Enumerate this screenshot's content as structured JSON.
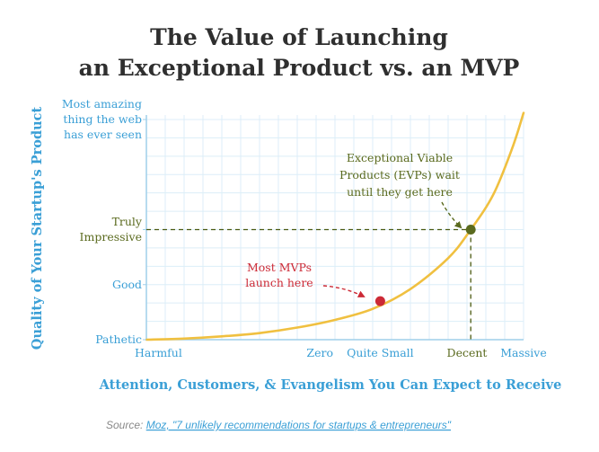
{
  "chart_data": {
    "type": "line",
    "title_lines": [
      "The Value of Launching",
      "an Exceptional Product vs. an MVP"
    ],
    "xlabel": "Attention, Customers, & Evangelism You Can Expect to Receive",
    "ylabel": "Quality of Your Startup's Product",
    "x_ticks": [
      {
        "label": "Harmful",
        "value": 0
      },
      {
        "label": "Zero",
        "value": 0.46
      },
      {
        "label": "Quite Small",
        "value": 0.62
      },
      {
        "label": "Decent",
        "value": 0.85
      },
      {
        "label": "Massive",
        "value": 1
      }
    ],
    "y_ticks": [
      {
        "lines": [
          "Pathetic"
        ],
        "value": 0,
        "color": "#3a9fd6"
      },
      {
        "lines": [
          "Good"
        ],
        "value": 0.25,
        "color": "#3a9fd6"
      },
      {
        "lines": [
          "Truly",
          "Impressive"
        ],
        "value": 0.5,
        "color": "#5a6a1e"
      },
      {
        "lines": [
          "Most amazing",
          "thing the web",
          "has ever seen"
        ],
        "value": 1,
        "color": "#3a9fd6"
      }
    ],
    "xlim": [
      0,
      1
    ],
    "ylim": [
      0,
      1
    ],
    "grid": true,
    "curve_color": "#f0c040",
    "series": [
      {
        "values_x": [
          0,
          0.1,
          0.2,
          0.3,
          0.4,
          0.5,
          0.6,
          0.7,
          0.8,
          0.86,
          0.92,
          0.97,
          1.0
        ],
        "values_y": [
          0,
          0.005,
          0.015,
          0.03,
          0.055,
          0.09,
          0.14,
          0.23,
          0.37,
          0.5,
          0.66,
          0.87,
          1.03
        ]
      }
    ],
    "points": [
      {
        "label_lines": [
          "Most MVPs",
          "launch here"
        ],
        "x": 0.62,
        "y": 0.175,
        "color": "#cc2a36"
      },
      {
        "label_lines": [
          "Exceptional Viable",
          "Products (EVPs) wait",
          "until they get here"
        ],
        "x": 0.86,
        "y": 0.5,
        "color": "#5a6a1e"
      }
    ]
  },
  "source": {
    "prefix": "Source: ",
    "link_text": "Moz, \"7 unlikely recommendations for startups & entrepreneurs\""
  }
}
